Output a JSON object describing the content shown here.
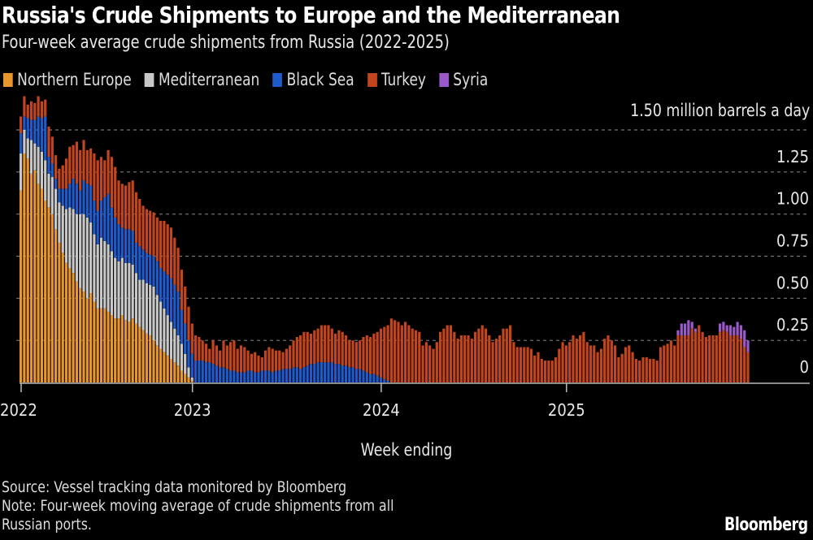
{
  "title": "Russia's Crude Shipments to Europe and the Mediterranean",
  "subtitle": "Four-week average crude shipments from Russia (2022-2025)",
  "unit_label": "1.50 million barrels a day",
  "x_axis_label": "Week ending",
  "source": "Source: Vessel tracking data monitored by Bloomberg",
  "note_line1": "Note: Four-week moving average of crude shipments from all",
  "note_line2": "Russian ports.",
  "brand": "Bloomberg",
  "legend": [
    {
      "label": "Northern Europe",
      "color": "#e8962e"
    },
    {
      "label": "Mediterranean",
      "color": "#c8c8c8"
    },
    {
      "label": "Black Sea",
      "color": "#1f5bcc"
    },
    {
      "label": "Turkey",
      "color": "#c2451e"
    },
    {
      "label": "Syria",
      "color": "#9a59c9"
    }
  ],
  "chart_data": {
    "type": "bar",
    "stacked": true,
    "title": "Russia's Crude Shipments to Europe and the Mediterranean",
    "subtitle": "Four-week average crude shipments from Russia (2022-2025)",
    "xlabel": "Week ending",
    "ylabel": "million barrels a day",
    "ylim": [
      0,
      1.5
    ],
    "y_ticks": [
      0,
      0.25,
      0.5,
      0.75,
      1.0,
      1.25,
      1.5
    ],
    "y_tick_labels": [
      "0",
      "0.25",
      "0.50",
      "0.75",
      "1.00",
      "1.25",
      "1.50 million barrels a day"
    ],
    "x_ticks": [
      "2022",
      "2023",
      "2024",
      "2025"
    ],
    "x_tick_weeks": [
      0,
      49,
      103,
      156
    ],
    "grid": true,
    "legend_position": "top-left",
    "series": [
      {
        "name": "Northern Europe",
        "color": "#e8962e",
        "values": [
          1.14,
          1.36,
          1.33,
          1.24,
          1.26,
          1.18,
          1.15,
          1.08,
          1.04,
          1.0,
          0.91,
          0.83,
          0.77,
          0.71,
          0.68,
          0.65,
          0.6,
          0.56,
          0.54,
          0.5,
          0.53,
          0.48,
          0.44,
          0.44,
          0.44,
          0.42,
          0.4,
          0.38,
          0.38,
          0.4,
          0.37,
          0.36,
          0.38,
          0.35,
          0.33,
          0.31,
          0.29,
          0.28,
          0.25,
          0.22,
          0.2,
          0.18,
          0.16,
          0.14,
          0.12,
          0.1,
          0.07,
          0.05,
          0.03,
          0.01,
          0,
          0,
          0,
          0,
          0,
          0,
          0,
          0,
          0,
          0,
          0,
          0,
          0,
          0,
          0,
          0,
          0,
          0,
          0,
          0,
          0,
          0,
          0,
          0,
          0,
          0,
          0,
          0,
          0,
          0,
          0,
          0,
          0,
          0,
          0,
          0,
          0,
          0,
          0,
          0,
          0,
          0,
          0,
          0,
          0,
          0,
          0,
          0,
          0,
          0,
          0,
          0,
          0,
          0,
          0,
          0,
          0,
          0,
          0,
          0,
          0,
          0,
          0,
          0,
          0,
          0,
          0,
          0,
          0,
          0,
          0,
          0,
          0,
          0,
          0,
          0,
          0,
          0,
          0,
          0,
          0,
          0,
          0,
          0,
          0,
          0,
          0,
          0,
          0,
          0,
          0,
          0,
          0,
          0,
          0,
          0,
          0,
          0,
          0,
          0,
          0,
          0,
          0,
          0,
          0,
          0,
          0,
          0,
          0,
          0,
          0,
          0,
          0,
          0,
          0,
          0,
          0,
          0,
          0,
          0,
          0,
          0,
          0,
          0,
          0,
          0,
          0,
          0,
          0,
          0,
          0,
          0,
          0,
          0,
          0,
          0,
          0,
          0,
          0,
          0,
          0,
          0,
          0,
          0,
          0,
          0,
          0,
          0,
          0,
          0,
          0,
          0,
          0,
          0,
          0,
          0,
          0,
          0,
          0
        ]
      },
      {
        "name": "Mediterranean",
        "color": "#c8c8c8",
        "values": [
          0.22,
          0.14,
          0.12,
          0.2,
          0.16,
          0.22,
          0.22,
          0.24,
          0.2,
          0.22,
          0.24,
          0.24,
          0.28,
          0.32,
          0.36,
          0.38,
          0.4,
          0.44,
          0.46,
          0.48,
          0.42,
          0.4,
          0.38,
          0.42,
          0.4,
          0.4,
          0.38,
          0.36,
          0.34,
          0.34,
          0.34,
          0.35,
          0.32,
          0.3,
          0.28,
          0.3,
          0.3,
          0.3,
          0.32,
          0.3,
          0.28,
          0.26,
          0.24,
          0.22,
          0.2,
          0.18,
          0.16,
          0.12,
          0.06,
          0.02,
          0,
          0,
          0,
          0,
          0,
          0,
          0,
          0,
          0,
          0,
          0,
          0,
          0,
          0,
          0,
          0,
          0,
          0,
          0,
          0,
          0,
          0,
          0,
          0,
          0,
          0,
          0,
          0,
          0,
          0,
          0,
          0,
          0,
          0,
          0,
          0,
          0,
          0,
          0,
          0,
          0,
          0,
          0,
          0,
          0,
          0,
          0,
          0,
          0,
          0,
          0,
          0,
          0,
          0,
          0,
          0,
          0,
          0,
          0,
          0,
          0,
          0,
          0,
          0,
          0,
          0,
          0,
          0,
          0,
          0,
          0,
          0,
          0,
          0,
          0,
          0,
          0,
          0,
          0,
          0,
          0,
          0,
          0,
          0,
          0,
          0,
          0,
          0,
          0,
          0,
          0,
          0,
          0,
          0,
          0,
          0,
          0,
          0,
          0,
          0,
          0,
          0,
          0,
          0,
          0,
          0,
          0,
          0,
          0,
          0,
          0,
          0,
          0,
          0,
          0,
          0,
          0,
          0,
          0,
          0,
          0,
          0,
          0,
          0,
          0,
          0,
          0,
          0,
          0,
          0,
          0,
          0,
          0,
          0,
          0,
          0,
          0,
          0,
          0,
          0,
          0,
          0,
          0,
          0,
          0,
          0,
          0,
          0,
          0,
          0,
          0,
          0,
          0,
          0,
          0,
          0,
          0,
          0,
          0
        ]
      },
      {
        "name": "Black Sea",
        "color": "#1f5bcc",
        "values": [
          0.12,
          0.08,
          0.12,
          0.12,
          0.14,
          0.18,
          0.2,
          0.26,
          0.1,
          0.08,
          0.06,
          0.08,
          0.1,
          0.12,
          0.14,
          0.18,
          0.18,
          0.14,
          0.2,
          0.2,
          0.22,
          0.2,
          0.2,
          0.22,
          0.26,
          0.3,
          0.26,
          0.24,
          0.22,
          0.18,
          0.2,
          0.2,
          0.2,
          0.18,
          0.2,
          0.18,
          0.18,
          0.18,
          0.18,
          0.2,
          0.2,
          0.22,
          0.24,
          0.26,
          0.26,
          0.26,
          0.2,
          0.18,
          0.16,
          0.14,
          0.13,
          0.13,
          0.13,
          0.12,
          0.12,
          0.11,
          0.1,
          0.09,
          0.09,
          0.08,
          0.07,
          0.07,
          0.06,
          0.06,
          0.06,
          0.07,
          0.07,
          0.06,
          0.06,
          0.07,
          0.07,
          0.07,
          0.06,
          0.07,
          0.07,
          0.08,
          0.08,
          0.08,
          0.09,
          0.09,
          0.08,
          0.09,
          0.1,
          0.11,
          0.11,
          0.12,
          0.12,
          0.12,
          0.12,
          0.12,
          0.11,
          0.11,
          0.1,
          0.1,
          0.09,
          0.09,
          0.08,
          0.08,
          0.07,
          0.06,
          0.05,
          0.05,
          0.04,
          0.03,
          0.02,
          0.01,
          0,
          0,
          0,
          0,
          0,
          0,
          0,
          0,
          0,
          0,
          0,
          0,
          0,
          0,
          0,
          0,
          0,
          0,
          0,
          0,
          0,
          0,
          0,
          0,
          0,
          0,
          0,
          0,
          0,
          0,
          0,
          0,
          0,
          0,
          0,
          0,
          0,
          0,
          0,
          0,
          0,
          0,
          0,
          0,
          0,
          0,
          0,
          0,
          0,
          0,
          0,
          0,
          0,
          0,
          0,
          0,
          0,
          0,
          0,
          0,
          0,
          0,
          0,
          0,
          0,
          0,
          0,
          0,
          0,
          0,
          0,
          0,
          0,
          0,
          0,
          0,
          0,
          0,
          0,
          0,
          0,
          0,
          0,
          0,
          0,
          0,
          0,
          0,
          0,
          0,
          0,
          0,
          0,
          0,
          0,
          0,
          0,
          0,
          0,
          0,
          0,
          0,
          0,
          0,
          0,
          0,
          0,
          0,
          0
        ]
      },
      {
        "name": "Turkey",
        "color": "#c2451e",
        "values": [
          0.1,
          0.12,
          0.08,
          0.11,
          0.1,
          0.12,
          0.1,
          0.1,
          0.18,
          0.16,
          0.14,
          0.12,
          0.14,
          0.18,
          0.22,
          0.2,
          0.25,
          0.24,
          0.24,
          0.2,
          0.22,
          0.28,
          0.3,
          0.26,
          0.22,
          0.26,
          0.3,
          0.3,
          0.26,
          0.26,
          0.26,
          0.28,
          0.3,
          0.3,
          0.28,
          0.26,
          0.26,
          0.26,
          0.26,
          0.26,
          0.28,
          0.3,
          0.3,
          0.3,
          0.28,
          0.26,
          0.24,
          0.22,
          0.2,
          0.18,
          0.15,
          0.14,
          0.12,
          0.11,
          0.08,
          0.14,
          0.12,
          0.1,
          0.16,
          0.14,
          0.17,
          0.18,
          0.14,
          0.16,
          0.15,
          0.12,
          0.1,
          0.12,
          0.1,
          0.08,
          0.12,
          0.14,
          0.14,
          0.12,
          0.12,
          0.1,
          0.12,
          0.14,
          0.16,
          0.18,
          0.2,
          0.21,
          0.2,
          0.18,
          0.2,
          0.2,
          0.22,
          0.22,
          0.22,
          0.2,
          0.18,
          0.2,
          0.2,
          0.18,
          0.16,
          0.16,
          0.16,
          0.17,
          0.2,
          0.22,
          0.22,
          0.24,
          0.26,
          0.29,
          0.31,
          0.33,
          0.38,
          0.37,
          0.36,
          0.34,
          0.36,
          0.34,
          0.32,
          0.31,
          0.3,
          0.22,
          0.24,
          0.22,
          0.2,
          0.24,
          0.3,
          0.32,
          0.34,
          0.34,
          0.3,
          0.26,
          0.28,
          0.28,
          0.28,
          0.26,
          0.3,
          0.32,
          0.34,
          0.32,
          0.28,
          0.24,
          0.26,
          0.28,
          0.32,
          0.32,
          0.34,
          0.24,
          0.21,
          0.21,
          0.21,
          0.21,
          0.2,
          0.16,
          0.18,
          0.14,
          0.13,
          0.13,
          0.13,
          0.15,
          0.2,
          0.24,
          0.22,
          0.24,
          0.28,
          0.26,
          0.28,
          0.3,
          0.24,
          0.22,
          0.22,
          0.18,
          0.2,
          0.26,
          0.28,
          0.25,
          0.22,
          0.15,
          0.17,
          0.21,
          0.22,
          0.18,
          0.14,
          0.13,
          0.15,
          0.15,
          0.14,
          0.14,
          0.13,
          0.21,
          0.22,
          0.23,
          0.25,
          0.22,
          0.28,
          0.28,
          0.28,
          0.28,
          0.32,
          0.3,
          0.34,
          0.3,
          0.27,
          0.28,
          0.28,
          0.28,
          0.3,
          0.31,
          0.3,
          0.28,
          0.28,
          0.28,
          0.26,
          0.21,
          0.18,
          0.16,
          0.12,
          0.13,
          0.18,
          0.17
        ]
      },
      {
        "name": "Syria",
        "color": "#9a59c9",
        "values": [
          0,
          0,
          0,
          0,
          0,
          0,
          0,
          0,
          0,
          0,
          0,
          0,
          0,
          0,
          0,
          0,
          0,
          0,
          0,
          0,
          0,
          0,
          0,
          0,
          0,
          0,
          0,
          0,
          0,
          0,
          0,
          0,
          0,
          0,
          0,
          0,
          0,
          0,
          0,
          0,
          0,
          0,
          0,
          0,
          0,
          0,
          0,
          0,
          0,
          0,
          0,
          0,
          0,
          0,
          0,
          0,
          0,
          0,
          0,
          0,
          0,
          0,
          0,
          0,
          0,
          0,
          0,
          0,
          0,
          0,
          0,
          0,
          0,
          0,
          0,
          0,
          0,
          0,
          0,
          0,
          0,
          0,
          0,
          0,
          0,
          0,
          0,
          0,
          0,
          0,
          0,
          0,
          0,
          0,
          0,
          0,
          0,
          0,
          0,
          0,
          0,
          0,
          0,
          0,
          0,
          0,
          0,
          0,
          0,
          0,
          0,
          0,
          0,
          0,
          0,
          0,
          0,
          0,
          0,
          0,
          0,
          0,
          0,
          0,
          0,
          0,
          0,
          0,
          0,
          0,
          0,
          0,
          0,
          0,
          0,
          0,
          0,
          0,
          0,
          0,
          0,
          0,
          0,
          0,
          0,
          0,
          0,
          0,
          0,
          0,
          0,
          0,
          0,
          0,
          0,
          0,
          0,
          0,
          0,
          0,
          0,
          0,
          0,
          0,
          0,
          0,
          0,
          0,
          0,
          0,
          0,
          0,
          0,
          0,
          0,
          0,
          0,
          0,
          0,
          0,
          0,
          0,
          0,
          0,
          0,
          0,
          0,
          0,
          0.03,
          0.07,
          0.07,
          0.09,
          0.04,
          0.02,
          0,
          0,
          0,
          0,
          0,
          0,
          0.05,
          0.05,
          0.04,
          0.06,
          0.05,
          0.08,
          0.08,
          0.1,
          0.07,
          0.08,
          0.09,
          0.09,
          0.06,
          0.08,
          0.04,
          0.04,
          0.04,
          0.07,
          0.05,
          0.05,
          0.08,
          0.06,
          0.04,
          0.04,
          0.06,
          0.04,
          0.05,
          0.04,
          0.02,
          0,
          0,
          0,
          0,
          0,
          0,
          0,
          0,
          0
        ]
      }
    ]
  }
}
